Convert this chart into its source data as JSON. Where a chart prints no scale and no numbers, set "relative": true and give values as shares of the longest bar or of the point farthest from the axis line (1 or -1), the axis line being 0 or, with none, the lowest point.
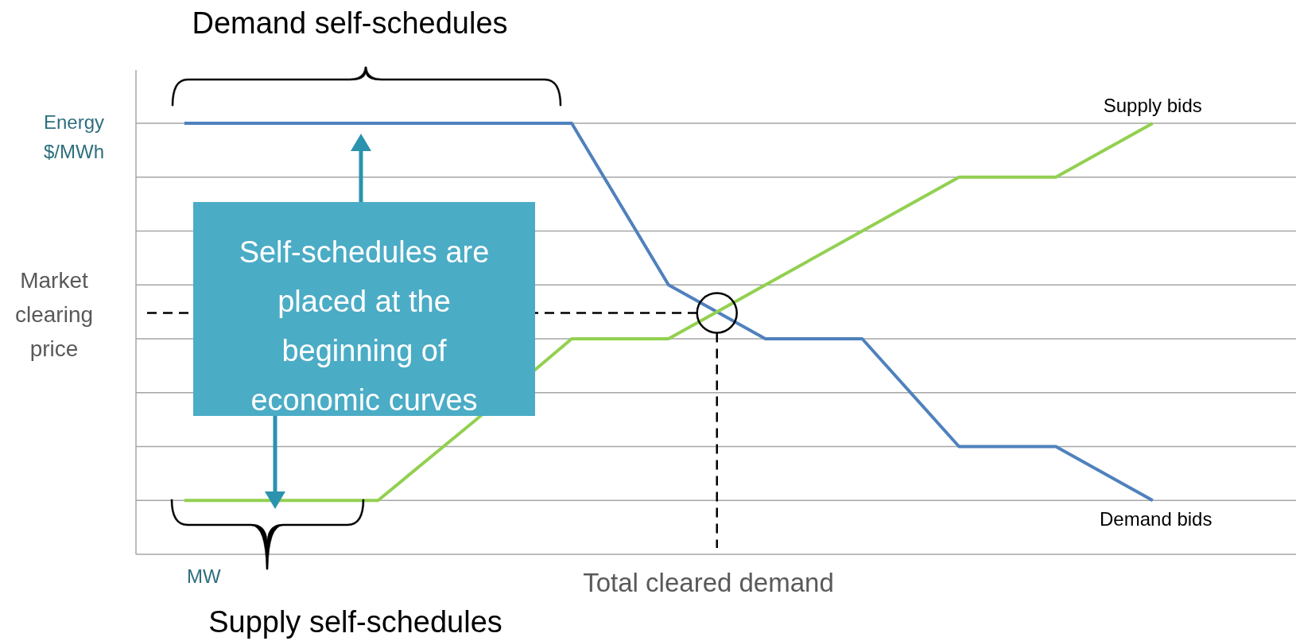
{
  "chart_data": {
    "type": "line",
    "relative": true,
    "grid": "y",
    "xlabel": "MW",
    "ylabel": "Energy $/MWh",
    "categories": [
      null,
      null,
      null,
      null,
      null,
      null,
      null,
      null,
      null,
      null,
      null
    ],
    "series": [
      {
        "name": "Demand bids",
        "color": "#4f81bd",
        "values": [
          1,
          1,
          1,
          1,
          1,
          0.625,
          0.5,
          0.5,
          0.25,
          0.25,
          0.125
        ]
      },
      {
        "name": "Supply bids",
        "color": "#92d050",
        "values": [
          0.125,
          0.125,
          0.125,
          0.31,
          0.5,
          0.5,
          0.625,
          0.75,
          0.875,
          0.875,
          1
        ]
      }
    ],
    "ref_lines": [
      {
        "axis": "y",
        "value": 0.56,
        "label": "Market clearing price",
        "line_style": "dashed",
        "color": "#000000"
      }
    ],
    "annotations": [
      "Demand self-schedules",
      "Supply self-schedules",
      "Self-schedules are placed at the beginning of economic curves",
      "Total cleared demand"
    ]
  }
}
